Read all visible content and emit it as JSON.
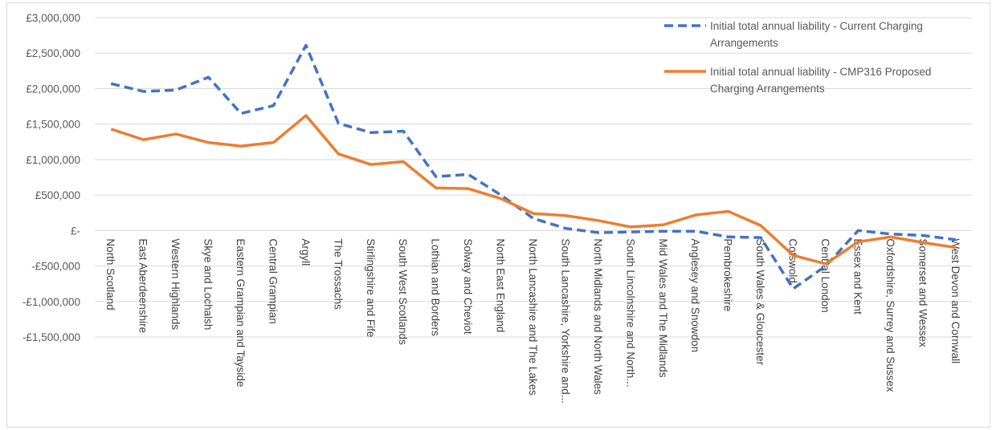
{
  "chart_data": {
    "type": "line",
    "title": "",
    "xlabel": "",
    "ylabel": "",
    "ylim": [
      -1500000,
      3000000
    ],
    "yticks": [
      3000000,
      2500000,
      2000000,
      1500000,
      1000000,
      500000,
      0,
      -500000,
      -1000000,
      -1500000
    ],
    "ytick_labels": [
      "£3,000,000",
      "£2,500,000",
      "£2,000,000",
      "£1,500,000",
      "£1,000,000",
      "£500,000",
      "£-",
      "-£500,000",
      "-£1,000,000",
      "-£1,500,000"
    ],
    "grid": true,
    "legend_position": "top-right",
    "categories": [
      "North Scotland",
      "East Aberdeenshire",
      "Western Highlands",
      "Skye and Lochalsh",
      "Eastern Grampian and Tayside",
      "Central Grampian",
      "Argyll",
      "The Trossachs",
      "Stirlingshire and Fife",
      "South West Scotlands",
      "Lothian and Borders",
      "Solway and Cheviot",
      "North East England",
      "North Lancashire and The Lakes",
      "South Lancashire, Yorkshire and...",
      "North Midlands and North Wales",
      "South Lincolnshire and North...",
      "Mid Wales and The Midlands",
      "Anglesey and Snowdon",
      "Pembrokeshire",
      "South Wales & Gloucester",
      "Cotswold",
      "Central London",
      "Essex and Kent",
      "Oxfordshire, Surrey and Sussex",
      "Somerset and Wessex",
      "West Devon and Cornwall"
    ],
    "series": [
      {
        "name": "Initial total annual liability - Current Charging Arrangements",
        "color": "#4472c4",
        "dash": "dashed",
        "values": [
          2070000,
          1960000,
          1980000,
          2160000,
          1650000,
          1760000,
          2610000,
          1510000,
          1380000,
          1400000,
          760000,
          790000,
          500000,
          170000,
          30000,
          -30000,
          -20000,
          -10000,
          -10000,
          -90000,
          -100000,
          -820000,
          -500000,
          0,
          -50000,
          -70000,
          -130000
        ]
      },
      {
        "name": "Initial total annual liability - CMP316 Proposed Charging Arrangements",
        "color": "#ed7d31",
        "dash": "solid",
        "values": [
          1430000,
          1280000,
          1360000,
          1240000,
          1190000,
          1240000,
          1620000,
          1080000,
          930000,
          970000,
          600000,
          590000,
          450000,
          240000,
          210000,
          140000,
          50000,
          80000,
          220000,
          270000,
          70000,
          -350000,
          -470000,
          -160000,
          -90000,
          -170000,
          -240000
        ]
      }
    ],
    "legend": {
      "entries": [
        {
          "lines": [
            "Initial total annual liability - Current Charging",
            "Arrangements"
          ]
        },
        {
          "lines": [
            "Initial total annual liability - CMP316 Proposed",
            "Charging Arrangements"
          ]
        }
      ]
    }
  }
}
